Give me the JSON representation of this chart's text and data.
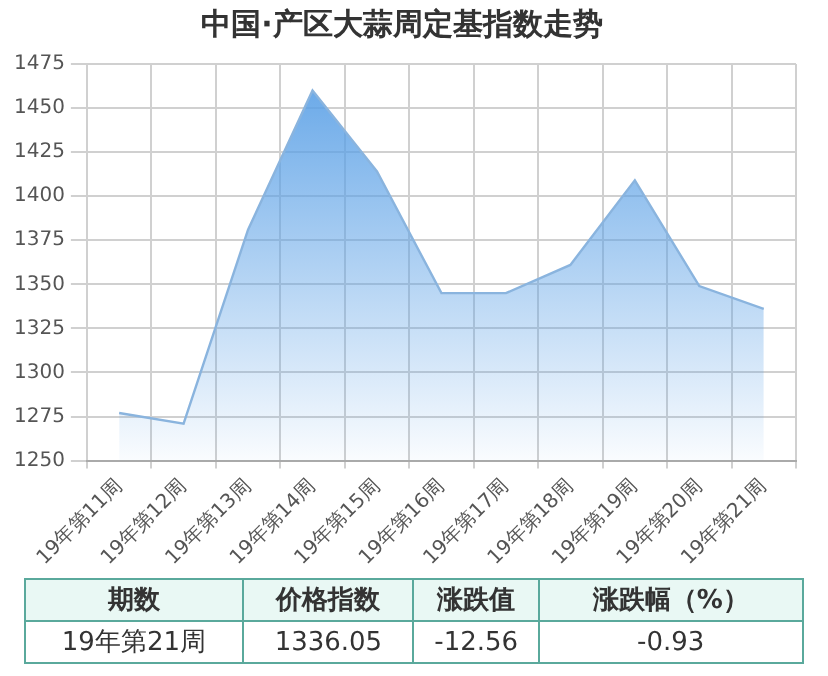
{
  "chart_data": {
    "type": "area",
    "title": "中国·产区大蒜周定基指数走势",
    "categories": [
      "19年第11周",
      "19年第12周",
      "19年第13周",
      "19年第14周",
      "19年第15周",
      "19年第16周",
      "19年第17周",
      "19年第18周",
      "19年第19周",
      "19年第20周",
      "19年第21周"
    ],
    "series": [
      {
        "color": "#8ab4de",
        "values": [
          1277,
          1271,
          1381,
          1460,
          1414,
          1345,
          1345,
          1361,
          1409,
          1349,
          1336.05
        ]
      }
    ],
    "ylim": [
      1250,
      1475
    ],
    "yticks": [
      1250,
      1275,
      1300,
      1325,
      1350,
      1375,
      1400,
      1425,
      1450,
      1475
    ],
    "grid": true,
    "legend": false,
    "annotations": [
      "期数",
      "价格指数",
      "涨跌值",
      "涨跌幅（%）",
      "19年第21周",
      "1336.05",
      "-12.56",
      "-0.93"
    ]
  }
}
